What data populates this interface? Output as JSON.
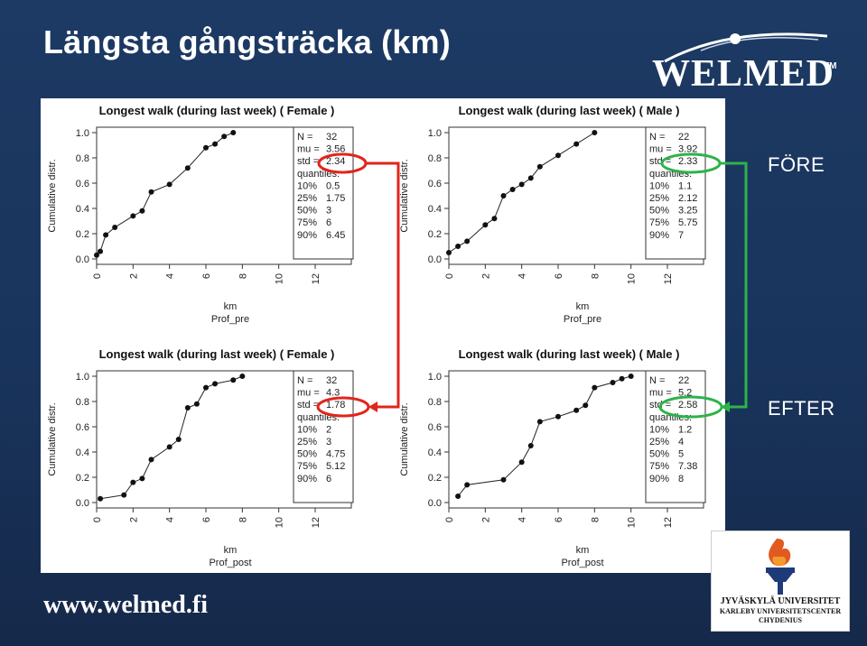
{
  "slide": {
    "title": "Längsta gångsträcka (km)",
    "label_before": "FÖRE",
    "label_after": "EFTER",
    "footer_url": "www.welmed.fi",
    "colors": {
      "background": "#1b365d",
      "before_circle": "#2db34a",
      "after_arrow": "#e1251b"
    }
  },
  "logo": {
    "text": "WELMED",
    "tm": "TM"
  },
  "university": {
    "line1": "JYVÄSKYLÄ UNIVERSITET",
    "line2": "KARLEBY UNIVERSITETSCENTER",
    "line3": "CHYDENIUS"
  },
  "chart_data": [
    {
      "type": "line",
      "title": "Longest walk (during last week) ( Female )",
      "xlabel": "km",
      "xsublabel": "Prof_pre",
      "ylabel": "Cumulative distr.",
      "xlim": [
        0,
        12
      ],
      "ylim": [
        0,
        1
      ],
      "xticks": [
        "0",
        "2",
        "4",
        "6",
        "8",
        "10",
        "12"
      ],
      "yticks": [
        "0.0",
        "0.2",
        "0.4",
        "0.6",
        "0.8",
        "1.0"
      ],
      "points": [
        [
          0,
          0.03
        ],
        [
          0.2,
          0.06
        ],
        [
          0.5,
          0.19
        ],
        [
          1,
          0.25
        ],
        [
          2,
          0.34
        ],
        [
          2.5,
          0.38
        ],
        [
          3,
          0.53
        ],
        [
          4,
          0.59
        ],
        [
          5,
          0.72
        ],
        [
          6,
          0.88
        ],
        [
          6.5,
          0.91
        ],
        [
          7,
          0.97
        ],
        [
          7.5,
          1.0
        ]
      ],
      "legend": [
        [
          "N =",
          "32"
        ],
        [
          "mu =",
          "3.56"
        ],
        [
          "std =",
          "2.34"
        ],
        [
          "quantiles:",
          ""
        ],
        [
          "10%",
          "0.5"
        ],
        [
          "25%",
          "1.75"
        ],
        [
          "50%",
          "3"
        ],
        [
          "75%",
          "6"
        ],
        [
          "90%",
          "6.45"
        ]
      ]
    },
    {
      "type": "line",
      "title": "Longest walk (during last week) ( Male )",
      "xlabel": "km",
      "xsublabel": "Prof_pre",
      "ylabel": "Cumulative distr.",
      "xlim": [
        0,
        12
      ],
      "ylim": [
        0,
        1
      ],
      "xticks": [
        "0",
        "2",
        "4",
        "6",
        "8",
        "10",
        "12"
      ],
      "yticks": [
        "0.0",
        "0.2",
        "0.4",
        "0.6",
        "0.8",
        "1.0"
      ],
      "points": [
        [
          0,
          0.05
        ],
        [
          0.5,
          0.1
        ],
        [
          1,
          0.14
        ],
        [
          2,
          0.27
        ],
        [
          2.5,
          0.32
        ],
        [
          3,
          0.5
        ],
        [
          3.5,
          0.55
        ],
        [
          4,
          0.59
        ],
        [
          4.5,
          0.64
        ],
        [
          5,
          0.73
        ],
        [
          6,
          0.82
        ],
        [
          7,
          0.91
        ],
        [
          8,
          1.0
        ]
      ],
      "legend": [
        [
          "N =",
          "22"
        ],
        [
          "mu =",
          "3.92"
        ],
        [
          "std =",
          "2.33"
        ],
        [
          "quantiles:",
          ""
        ],
        [
          "10%",
          "1.1"
        ],
        [
          "25%",
          "2.12"
        ],
        [
          "50%",
          "3.25"
        ],
        [
          "75%",
          "5.75"
        ],
        [
          "90%",
          "7"
        ]
      ]
    },
    {
      "type": "line",
      "title": "Longest walk (during last week) ( Female )",
      "xlabel": "km",
      "xsublabel": "Prof_post",
      "ylabel": "Cumulative distr.",
      "xlim": [
        0,
        12
      ],
      "ylim": [
        0,
        1
      ],
      "xticks": [
        "0",
        "2",
        "4",
        "6",
        "8",
        "10",
        "12"
      ],
      "yticks": [
        "0.0",
        "0.2",
        "0.4",
        "0.6",
        "0.8",
        "1.0"
      ],
      "points": [
        [
          0.2,
          0.03
        ],
        [
          1.5,
          0.06
        ],
        [
          2,
          0.16
        ],
        [
          2.5,
          0.19
        ],
        [
          3,
          0.34
        ],
        [
          4,
          0.44
        ],
        [
          4.5,
          0.5
        ],
        [
          5,
          0.75
        ],
        [
          5.5,
          0.78
        ],
        [
          6,
          0.91
        ],
        [
          6.5,
          0.94
        ],
        [
          7.5,
          0.97
        ],
        [
          8,
          1.0
        ]
      ],
      "legend": [
        [
          "N =",
          "32"
        ],
        [
          "mu =",
          "4.3"
        ],
        [
          "std =",
          "1.78"
        ],
        [
          "quantiles:",
          ""
        ],
        [
          "10%",
          "2"
        ],
        [
          "25%",
          "3"
        ],
        [
          "50%",
          "4.75"
        ],
        [
          "75%",
          "5.12"
        ],
        [
          "90%",
          "6"
        ]
      ]
    },
    {
      "type": "line",
      "title": "Longest walk (during last week) ( Male )",
      "xlabel": "km",
      "xsublabel": "Prof_post",
      "ylabel": "Cumulative distr.",
      "xlim": [
        0,
        12
      ],
      "ylim": [
        0,
        1
      ],
      "xticks": [
        "0",
        "2",
        "4",
        "6",
        "8",
        "10",
        "12"
      ],
      "yticks": [
        "0.0",
        "0.2",
        "0.4",
        "0.6",
        "0.8",
        "1.0"
      ],
      "points": [
        [
          0.5,
          0.05
        ],
        [
          1,
          0.14
        ],
        [
          3,
          0.18
        ],
        [
          4,
          0.32
        ],
        [
          4.5,
          0.45
        ],
        [
          5,
          0.64
        ],
        [
          6,
          0.68
        ],
        [
          7,
          0.73
        ],
        [
          7.5,
          0.77
        ],
        [
          8,
          0.91
        ],
        [
          9,
          0.95
        ],
        [
          9.5,
          0.98
        ],
        [
          10,
          1.0
        ]
      ],
      "legend": [
        [
          "N =",
          "22"
        ],
        [
          "mu =",
          "5.2"
        ],
        [
          "std =",
          "2.58"
        ],
        [
          "quantiles:",
          ""
        ],
        [
          "10%",
          "1.2"
        ],
        [
          "25%",
          "4"
        ],
        [
          "50%",
          "5"
        ],
        [
          "75%",
          "7.38"
        ],
        [
          "90%",
          "8"
        ]
      ]
    }
  ]
}
